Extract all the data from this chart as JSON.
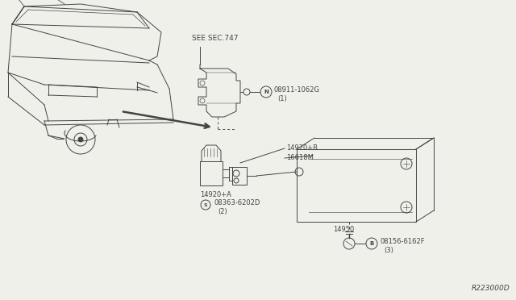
{
  "bg_color": "#f0f0eb",
  "diagram_ref": "R223000D",
  "see_sec_text": "SEE SEC.747",
  "line_color": "#444444",
  "labels": {
    "n_label": "08911-1062G",
    "n_sub": "(1)",
    "s_label": "08363-6202D",
    "s_sub": "(2)",
    "b_label": "08156-6162F",
    "b_sub": "(3)",
    "part1": "14920+B",
    "part2": "16618M",
    "part3": "14920+A",
    "part4": "14950"
  }
}
